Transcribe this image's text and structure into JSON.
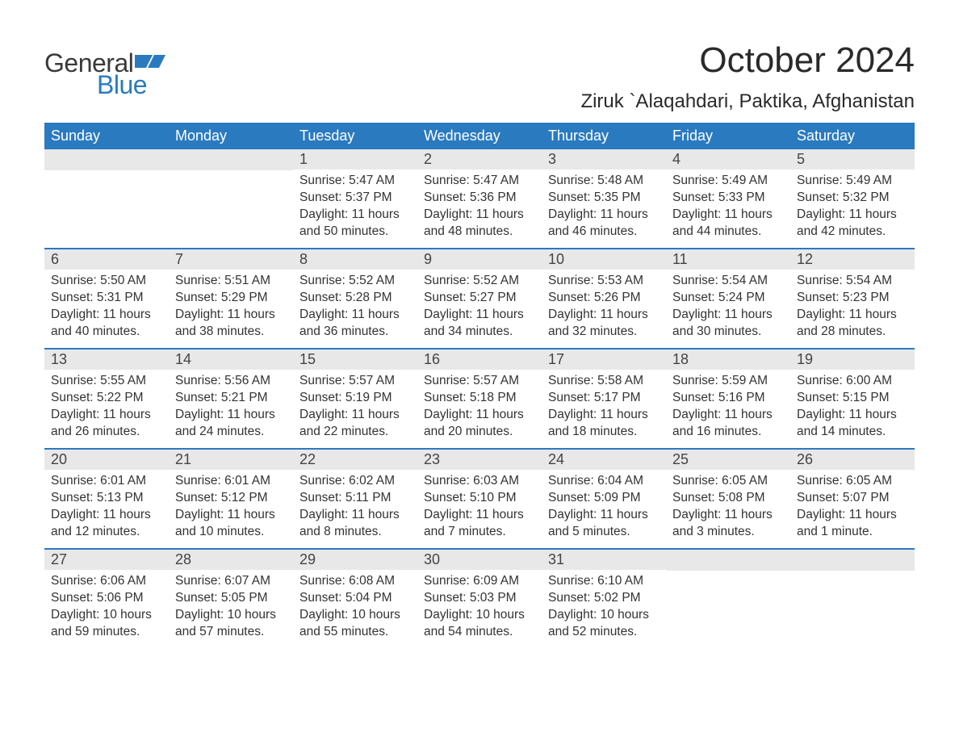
{
  "brand": {
    "word1": "General",
    "word2": "Blue",
    "word1_color": "#3a3a3a",
    "word2_color": "#2a7ac0",
    "icon_color": "#2a7ac0"
  },
  "title": "October 2024",
  "location": "Ziruk `Alaqahdari, Paktika, Afghanistan",
  "colors": {
    "header_bg": "#2a7ac0",
    "header_fg": "#ffffff",
    "daynum_bg": "#e8e8e8",
    "week_divider": "#2a7ac0",
    "page_bg": "#ffffff",
    "text": "#333333"
  },
  "weekdays": [
    "Sunday",
    "Monday",
    "Tuesday",
    "Wednesday",
    "Thursday",
    "Friday",
    "Saturday"
  ],
  "weeks": [
    [
      {
        "n": "",
        "sunrise": "",
        "sunset": "",
        "daylight": ""
      },
      {
        "n": "",
        "sunrise": "",
        "sunset": "",
        "daylight": ""
      },
      {
        "n": "1",
        "sunrise": "Sunrise: 5:47 AM",
        "sunset": "Sunset: 5:37 PM",
        "daylight": "Daylight: 11 hours and 50 minutes."
      },
      {
        "n": "2",
        "sunrise": "Sunrise: 5:47 AM",
        "sunset": "Sunset: 5:36 PM",
        "daylight": "Daylight: 11 hours and 48 minutes."
      },
      {
        "n": "3",
        "sunrise": "Sunrise: 5:48 AM",
        "sunset": "Sunset: 5:35 PM",
        "daylight": "Daylight: 11 hours and 46 minutes."
      },
      {
        "n": "4",
        "sunrise": "Sunrise: 5:49 AM",
        "sunset": "Sunset: 5:33 PM",
        "daylight": "Daylight: 11 hours and 44 minutes."
      },
      {
        "n": "5",
        "sunrise": "Sunrise: 5:49 AM",
        "sunset": "Sunset: 5:32 PM",
        "daylight": "Daylight: 11 hours and 42 minutes."
      }
    ],
    [
      {
        "n": "6",
        "sunrise": "Sunrise: 5:50 AM",
        "sunset": "Sunset: 5:31 PM",
        "daylight": "Daylight: 11 hours and 40 minutes."
      },
      {
        "n": "7",
        "sunrise": "Sunrise: 5:51 AM",
        "sunset": "Sunset: 5:29 PM",
        "daylight": "Daylight: 11 hours and 38 minutes."
      },
      {
        "n": "8",
        "sunrise": "Sunrise: 5:52 AM",
        "sunset": "Sunset: 5:28 PM",
        "daylight": "Daylight: 11 hours and 36 minutes."
      },
      {
        "n": "9",
        "sunrise": "Sunrise: 5:52 AM",
        "sunset": "Sunset: 5:27 PM",
        "daylight": "Daylight: 11 hours and 34 minutes."
      },
      {
        "n": "10",
        "sunrise": "Sunrise: 5:53 AM",
        "sunset": "Sunset: 5:26 PM",
        "daylight": "Daylight: 11 hours and 32 minutes."
      },
      {
        "n": "11",
        "sunrise": "Sunrise: 5:54 AM",
        "sunset": "Sunset: 5:24 PM",
        "daylight": "Daylight: 11 hours and 30 minutes."
      },
      {
        "n": "12",
        "sunrise": "Sunrise: 5:54 AM",
        "sunset": "Sunset: 5:23 PM",
        "daylight": "Daylight: 11 hours and 28 minutes."
      }
    ],
    [
      {
        "n": "13",
        "sunrise": "Sunrise: 5:55 AM",
        "sunset": "Sunset: 5:22 PM",
        "daylight": "Daylight: 11 hours and 26 minutes."
      },
      {
        "n": "14",
        "sunrise": "Sunrise: 5:56 AM",
        "sunset": "Sunset: 5:21 PM",
        "daylight": "Daylight: 11 hours and 24 minutes."
      },
      {
        "n": "15",
        "sunrise": "Sunrise: 5:57 AM",
        "sunset": "Sunset: 5:19 PM",
        "daylight": "Daylight: 11 hours and 22 minutes."
      },
      {
        "n": "16",
        "sunrise": "Sunrise: 5:57 AM",
        "sunset": "Sunset: 5:18 PM",
        "daylight": "Daylight: 11 hours and 20 minutes."
      },
      {
        "n": "17",
        "sunrise": "Sunrise: 5:58 AM",
        "sunset": "Sunset: 5:17 PM",
        "daylight": "Daylight: 11 hours and 18 minutes."
      },
      {
        "n": "18",
        "sunrise": "Sunrise: 5:59 AM",
        "sunset": "Sunset: 5:16 PM",
        "daylight": "Daylight: 11 hours and 16 minutes."
      },
      {
        "n": "19",
        "sunrise": "Sunrise: 6:00 AM",
        "sunset": "Sunset: 5:15 PM",
        "daylight": "Daylight: 11 hours and 14 minutes."
      }
    ],
    [
      {
        "n": "20",
        "sunrise": "Sunrise: 6:01 AM",
        "sunset": "Sunset: 5:13 PM",
        "daylight": "Daylight: 11 hours and 12 minutes."
      },
      {
        "n": "21",
        "sunrise": "Sunrise: 6:01 AM",
        "sunset": "Sunset: 5:12 PM",
        "daylight": "Daylight: 11 hours and 10 minutes."
      },
      {
        "n": "22",
        "sunrise": "Sunrise: 6:02 AM",
        "sunset": "Sunset: 5:11 PM",
        "daylight": "Daylight: 11 hours and 8 minutes."
      },
      {
        "n": "23",
        "sunrise": "Sunrise: 6:03 AM",
        "sunset": "Sunset: 5:10 PM",
        "daylight": "Daylight: 11 hours and 7 minutes."
      },
      {
        "n": "24",
        "sunrise": "Sunrise: 6:04 AM",
        "sunset": "Sunset: 5:09 PM",
        "daylight": "Daylight: 11 hours and 5 minutes."
      },
      {
        "n": "25",
        "sunrise": "Sunrise: 6:05 AM",
        "sunset": "Sunset: 5:08 PM",
        "daylight": "Daylight: 11 hours and 3 minutes."
      },
      {
        "n": "26",
        "sunrise": "Sunrise: 6:05 AM",
        "sunset": "Sunset: 5:07 PM",
        "daylight": "Daylight: 11 hours and 1 minute."
      }
    ],
    [
      {
        "n": "27",
        "sunrise": "Sunrise: 6:06 AM",
        "sunset": "Sunset: 5:06 PM",
        "daylight": "Daylight: 10 hours and 59 minutes."
      },
      {
        "n": "28",
        "sunrise": "Sunrise: 6:07 AM",
        "sunset": "Sunset: 5:05 PM",
        "daylight": "Daylight: 10 hours and 57 minutes."
      },
      {
        "n": "29",
        "sunrise": "Sunrise: 6:08 AM",
        "sunset": "Sunset: 5:04 PM",
        "daylight": "Daylight: 10 hours and 55 minutes."
      },
      {
        "n": "30",
        "sunrise": "Sunrise: 6:09 AM",
        "sunset": "Sunset: 5:03 PM",
        "daylight": "Daylight: 10 hours and 54 minutes."
      },
      {
        "n": "31",
        "sunrise": "Sunrise: 6:10 AM",
        "sunset": "Sunset: 5:02 PM",
        "daylight": "Daylight: 10 hours and 52 minutes."
      },
      {
        "n": "",
        "sunrise": "",
        "sunset": "",
        "daylight": ""
      },
      {
        "n": "",
        "sunrise": "",
        "sunset": "",
        "daylight": ""
      }
    ]
  ]
}
